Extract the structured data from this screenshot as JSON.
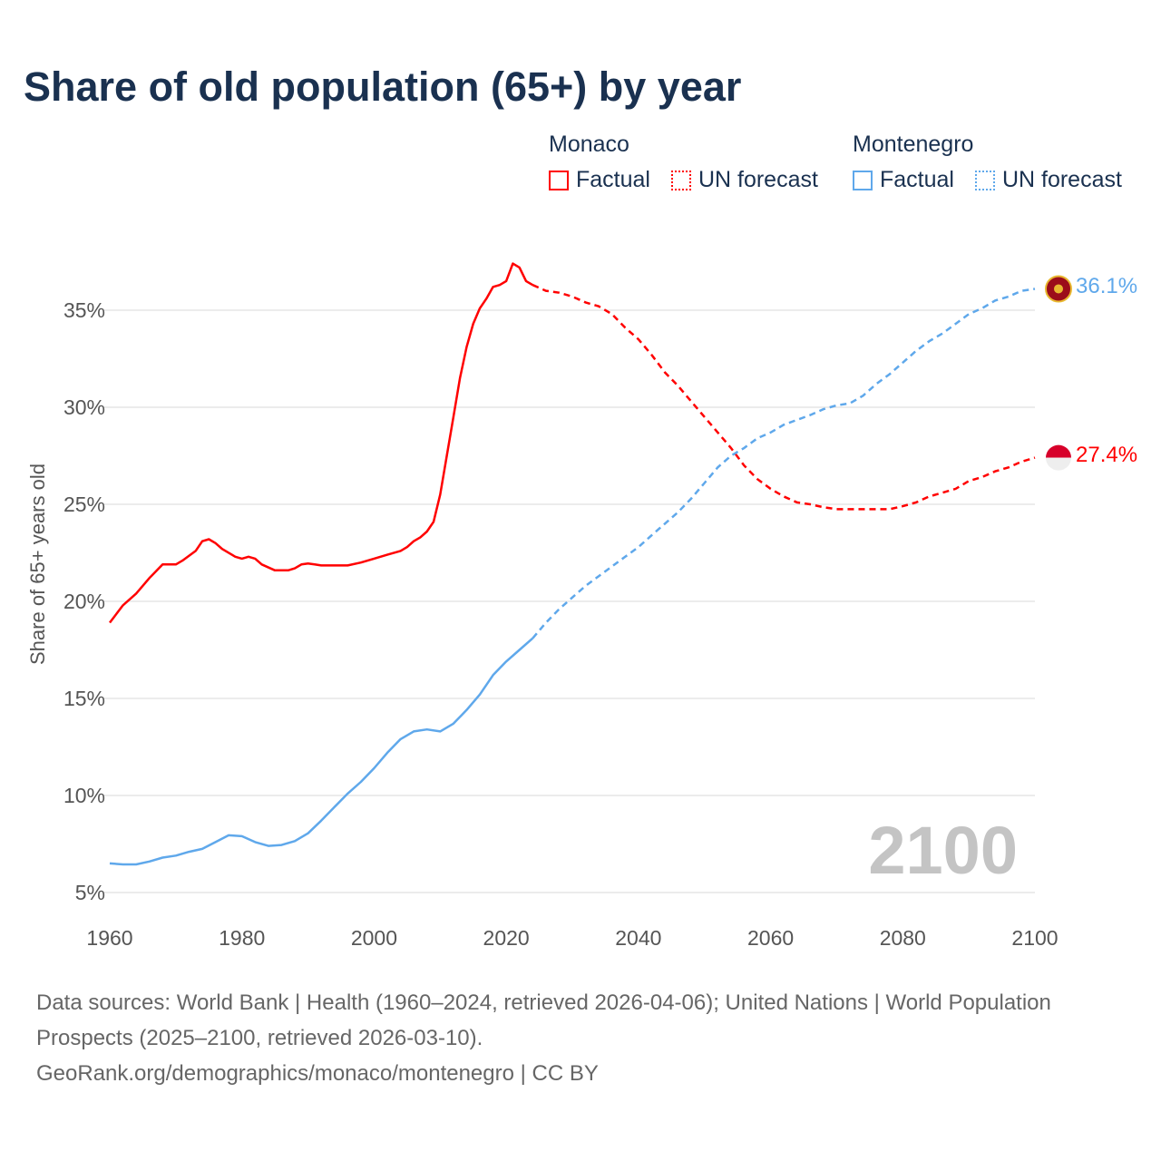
{
  "chart_data": {
    "type": "line",
    "title": "Share of old population (65+) by year",
    "xlabel": "",
    "ylabel": "Share of 65+ years old",
    "xlim": [
      1960,
      2100
    ],
    "ylim": [
      5,
      38
    ],
    "x_ticks": [
      "1960",
      "1980",
      "2000",
      "2020",
      "2040",
      "2060",
      "2080",
      "2100"
    ],
    "x_tick_values": [
      1960,
      1980,
      2000,
      2020,
      2040,
      2060,
      2080,
      2100
    ],
    "y_ticks": [
      "5%",
      "10%",
      "15%",
      "20%",
      "25%",
      "30%",
      "35%"
    ],
    "y_tick_values": [
      5,
      10,
      15,
      20,
      25,
      30,
      35
    ],
    "grid": true,
    "legend_placement": "top-right",
    "current_year": "2100",
    "legend": {
      "groups": [
        {
          "name": "Monaco",
          "factual": "Factual",
          "forecast": "UN forecast"
        },
        {
          "name": "Montenegro",
          "factual": "Factual",
          "forecast": "UN forecast"
        }
      ]
    },
    "series": [
      {
        "name": "Monaco",
        "color": "#ff0000",
        "end_label": "27.4%",
        "factual": [
          [
            1960,
            18.9
          ],
          [
            1962,
            19.8
          ],
          [
            1964,
            20.4
          ],
          [
            1966,
            21.2
          ],
          [
            1968,
            21.9
          ],
          [
            1970,
            21.9
          ],
          [
            1971,
            22.1
          ],
          [
            1973,
            22.6
          ],
          [
            1974,
            23.1
          ],
          [
            1975,
            23.2
          ],
          [
            1976,
            23.0
          ],
          [
            1977,
            22.7
          ],
          [
            1979,
            22.3
          ],
          [
            1980,
            22.2
          ],
          [
            1981,
            22.3
          ],
          [
            1982,
            22.2
          ],
          [
            1983,
            21.9
          ],
          [
            1985,
            21.6
          ],
          [
            1987,
            21.6
          ],
          [
            1988,
            21.7
          ],
          [
            1989,
            21.9
          ],
          [
            1990,
            21.95
          ],
          [
            1991,
            21.9
          ],
          [
            1992,
            21.85
          ],
          [
            1996,
            21.85
          ],
          [
            1998,
            22.0
          ],
          [
            2000,
            22.2
          ],
          [
            2002,
            22.4
          ],
          [
            2004,
            22.6
          ],
          [
            2005,
            22.8
          ],
          [
            2006,
            23.1
          ],
          [
            2007,
            23.3
          ],
          [
            2008,
            23.6
          ],
          [
            2009,
            24.1
          ],
          [
            2010,
            25.5
          ],
          [
            2011,
            27.5
          ],
          [
            2012,
            29.5
          ],
          [
            2013,
            31.5
          ],
          [
            2014,
            33.1
          ],
          [
            2015,
            34.3
          ],
          [
            2016,
            35.1
          ],
          [
            2017,
            35.6
          ],
          [
            2018,
            36.2
          ],
          [
            2019,
            36.3
          ],
          [
            2020,
            36.5
          ],
          [
            2021,
            37.4
          ],
          [
            2022,
            37.2
          ],
          [
            2023,
            36.5
          ],
          [
            2024,
            36.3
          ]
        ],
        "forecast": [
          [
            2024,
            36.3
          ],
          [
            2026,
            36.0
          ],
          [
            2028,
            35.9
          ],
          [
            2030,
            35.7
          ],
          [
            2032,
            35.4
          ],
          [
            2034,
            35.2
          ],
          [
            2036,
            34.8
          ],
          [
            2038,
            34.1
          ],
          [
            2040,
            33.5
          ],
          [
            2042,
            32.7
          ],
          [
            2044,
            31.8
          ],
          [
            2046,
            31.1
          ],
          [
            2048,
            30.3
          ],
          [
            2050,
            29.5
          ],
          [
            2052,
            28.7
          ],
          [
            2054,
            27.9
          ],
          [
            2056,
            27.0
          ],
          [
            2058,
            26.3
          ],
          [
            2060,
            25.8
          ],
          [
            2062,
            25.4
          ],
          [
            2064,
            25.1
          ],
          [
            2066,
            25.0
          ],
          [
            2068,
            24.85
          ],
          [
            2070,
            24.75
          ],
          [
            2075,
            24.75
          ],
          [
            2078,
            24.75
          ],
          [
            2080,
            24.9
          ],
          [
            2082,
            25.1
          ],
          [
            2084,
            25.4
          ],
          [
            2086,
            25.6
          ],
          [
            2088,
            25.8
          ],
          [
            2090,
            26.2
          ],
          [
            2092,
            26.4
          ],
          [
            2094,
            26.7
          ],
          [
            2096,
            26.9
          ],
          [
            2098,
            27.2
          ],
          [
            2100,
            27.4
          ]
        ]
      },
      {
        "name": "Montenegro",
        "color": "#5fa8eb",
        "end_label": "36.1%",
        "factual": [
          [
            1960,
            6.5
          ],
          [
            1962,
            6.45
          ],
          [
            1964,
            6.45
          ],
          [
            1966,
            6.6
          ],
          [
            1968,
            6.8
          ],
          [
            1970,
            6.9
          ],
          [
            1972,
            7.1
          ],
          [
            1974,
            7.25
          ],
          [
            1976,
            7.6
          ],
          [
            1978,
            7.95
          ],
          [
            1980,
            7.9
          ],
          [
            1982,
            7.6
          ],
          [
            1984,
            7.4
          ],
          [
            1986,
            7.45
          ],
          [
            1988,
            7.65
          ],
          [
            1990,
            8.05
          ],
          [
            1992,
            8.7
          ],
          [
            1994,
            9.4
          ],
          [
            1996,
            10.1
          ],
          [
            1998,
            10.7
          ],
          [
            2000,
            11.4
          ],
          [
            2002,
            12.2
          ],
          [
            2004,
            12.9
          ],
          [
            2006,
            13.3
          ],
          [
            2008,
            13.4
          ],
          [
            2010,
            13.3
          ],
          [
            2012,
            13.7
          ],
          [
            2014,
            14.4
          ],
          [
            2016,
            15.2
          ],
          [
            2018,
            16.2
          ],
          [
            2020,
            16.9
          ],
          [
            2022,
            17.5
          ],
          [
            2024,
            18.1
          ]
        ],
        "forecast": [
          [
            2024,
            18.1
          ],
          [
            2026,
            18.9
          ],
          [
            2028,
            19.6
          ],
          [
            2030,
            20.2
          ],
          [
            2032,
            20.8
          ],
          [
            2034,
            21.3
          ],
          [
            2036,
            21.8
          ],
          [
            2038,
            22.3
          ],
          [
            2040,
            22.8
          ],
          [
            2042,
            23.4
          ],
          [
            2044,
            24.0
          ],
          [
            2046,
            24.6
          ],
          [
            2048,
            25.3
          ],
          [
            2050,
            26.1
          ],
          [
            2052,
            26.9
          ],
          [
            2054,
            27.5
          ],
          [
            2056,
            27.9
          ],
          [
            2058,
            28.4
          ],
          [
            2060,
            28.7
          ],
          [
            2062,
            29.1
          ],
          [
            2064,
            29.35
          ],
          [
            2066,
            29.6
          ],
          [
            2068,
            29.9
          ],
          [
            2070,
            30.1
          ],
          [
            2072,
            30.2
          ],
          [
            2074,
            30.6
          ],
          [
            2076,
            31.2
          ],
          [
            2078,
            31.7
          ],
          [
            2080,
            32.3
          ],
          [
            2082,
            32.9
          ],
          [
            2084,
            33.4
          ],
          [
            2086,
            33.8
          ],
          [
            2088,
            34.3
          ],
          [
            2090,
            34.8
          ],
          [
            2092,
            35.1
          ],
          [
            2094,
            35.5
          ],
          [
            2096,
            35.7
          ],
          [
            2098,
            36.0
          ],
          [
            2100,
            36.1
          ]
        ]
      }
    ]
  },
  "footer": {
    "sources": "Data sources: World Bank | Health (1960–2024, retrieved 2026-04-06); United Nations | World Population Prospects (2025–2100, retrieved 2026-03-10).",
    "credit": "GeoRank.org/demographics/monaco/montenegro | CC BY"
  }
}
